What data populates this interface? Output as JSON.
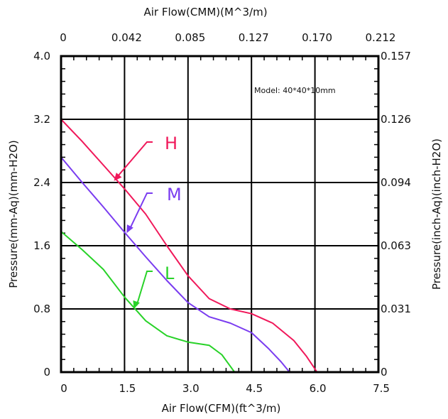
{
  "chart_data": {
    "type": "line",
    "title": "",
    "xlabel": "Air Flow(CFM)(ft^3/m)",
    "x2label": "Air Flow(CMM)(M^3/m)",
    "ylabel": "Pressure(mm-Aq)(mm-H2O)",
    "y2label": "Pressure(inch-Aq)(inch-H2O)",
    "annotation": "Model:  40*40*10mm",
    "xlim": [
      0,
      7.5
    ],
    "ylim": [
      0,
      4.0
    ],
    "x_ticks": [
      "0",
      "1.5",
      "3.0",
      "4.5",
      "6.0",
      "7.5"
    ],
    "x2_ticks": [
      "0",
      "0.042",
      "0.085",
      "0.127",
      "0.170",
      "0.212"
    ],
    "y_ticks": [
      "0",
      "0.8",
      "1.6",
      "2.4",
      "3.2",
      "4.0"
    ],
    "y2_ticks": [
      "0",
      "0.031",
      "0.063",
      "0.094",
      "0.126",
      "0.157"
    ],
    "grid": true,
    "series": [
      {
        "name": "H",
        "color": "#f0185a",
        "points": [
          [
            0,
            3.2
          ],
          [
            0.5,
            2.92
          ],
          [
            1.0,
            2.62
          ],
          [
            1.5,
            2.32
          ],
          [
            2.0,
            2.0
          ],
          [
            2.5,
            1.6
          ],
          [
            3.0,
            1.22
          ],
          [
            3.5,
            0.93
          ],
          [
            4.0,
            0.8
          ],
          [
            4.5,
            0.74
          ],
          [
            5.0,
            0.62
          ],
          [
            5.5,
            0.4
          ],
          [
            5.8,
            0.2
          ],
          [
            6.05,
            0
          ]
        ]
      },
      {
        "name": "M",
        "color": "#7a3cf0",
        "points": [
          [
            0,
            2.72
          ],
          [
            0.5,
            2.4
          ],
          [
            1.0,
            2.09
          ],
          [
            1.5,
            1.77
          ],
          [
            2.0,
            1.46
          ],
          [
            2.5,
            1.16
          ],
          [
            3.0,
            0.88
          ],
          [
            3.5,
            0.7
          ],
          [
            4.0,
            0.62
          ],
          [
            4.5,
            0.5
          ],
          [
            4.9,
            0.3
          ],
          [
            5.2,
            0.13
          ],
          [
            5.4,
            0
          ]
        ]
      },
      {
        "name": "L",
        "color": "#28d228",
        "points": [
          [
            0,
            1.78
          ],
          [
            0.5,
            1.55
          ],
          [
            1.0,
            1.3
          ],
          [
            1.5,
            0.95
          ],
          [
            2.0,
            0.65
          ],
          [
            2.5,
            0.46
          ],
          [
            3.0,
            0.38
          ],
          [
            3.5,
            0.34
          ],
          [
            3.8,
            0.22
          ],
          [
            4.1,
            0
          ]
        ]
      }
    ]
  }
}
